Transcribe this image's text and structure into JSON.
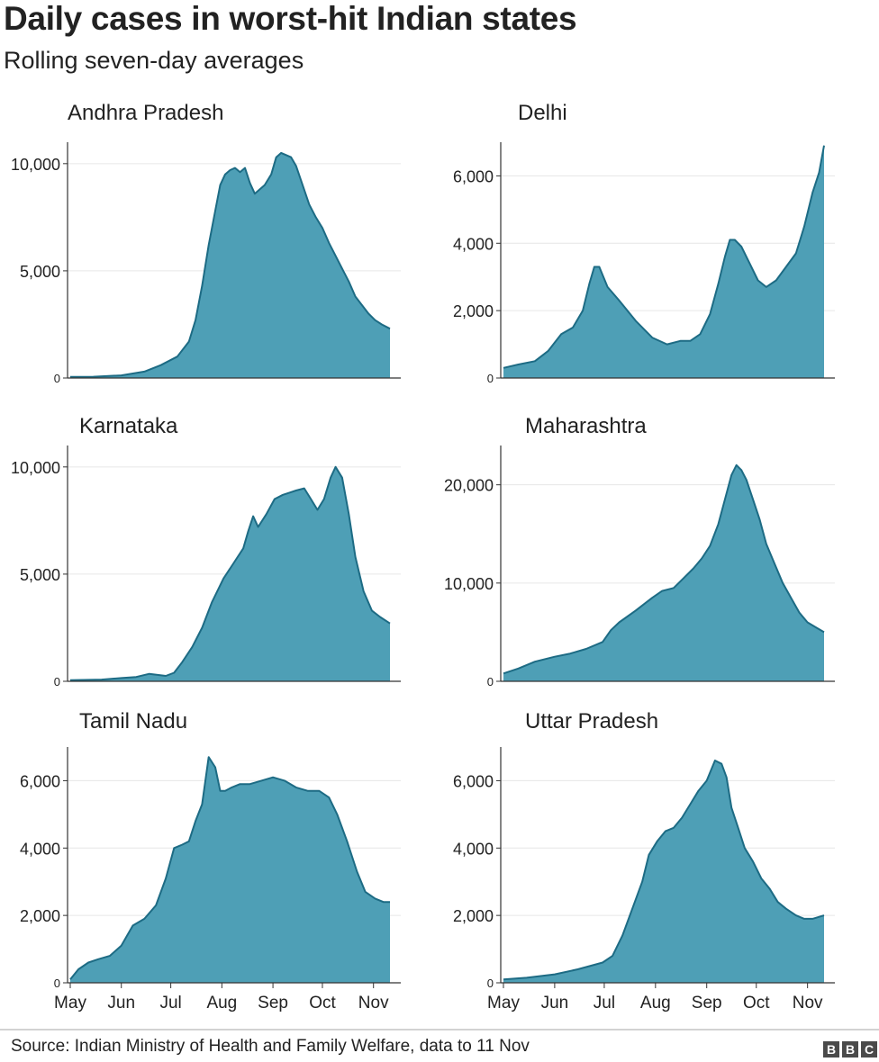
{
  "title": "Daily cases in worst-hit Indian states",
  "subtitle": "Rolling seven-day averages",
  "source": "Source: Indian Ministry of Health and Family Welfare, data to 11 Nov",
  "logo": {
    "text": "BBC",
    "letters": [
      "B",
      "B",
      "C"
    ]
  },
  "colors": {
    "area": "#4e9fb6",
    "line": "#1d6b84",
    "axis": "#333333",
    "grid": "#e6e6e6"
  },
  "chart_data": [
    {
      "type": "area",
      "title": "Andhra Pradesh",
      "ylim": [
        0,
        11000
      ],
      "yticks": [
        0,
        5000,
        10000
      ],
      "ytick_labels": [
        "0",
        "5,000",
        "10,000"
      ],
      "x_months": [],
      "grid": true,
      "x": [
        "2020-05-01",
        "2020-05-15",
        "2020-06-01",
        "2020-06-15",
        "2020-06-25",
        "2020-07-05",
        "2020-07-12",
        "2020-07-16",
        "2020-07-20",
        "2020-07-24",
        "2020-07-28",
        "2020-07-31",
        "2020-08-03",
        "2020-08-06",
        "2020-08-09",
        "2020-08-12",
        "2020-08-15",
        "2020-08-18",
        "2020-08-21",
        "2020-08-24",
        "2020-08-27",
        "2020-08-31",
        "2020-09-03",
        "2020-09-06",
        "2020-09-09",
        "2020-09-12",
        "2020-09-15",
        "2020-09-19",
        "2020-09-23",
        "2020-09-27",
        "2020-10-01",
        "2020-10-05",
        "2020-10-09",
        "2020-10-13",
        "2020-10-17",
        "2020-10-21",
        "2020-10-25",
        "2020-10-29",
        "2020-11-02",
        "2020-11-06",
        "2020-11-11"
      ],
      "values": [
        50,
        60,
        120,
        300,
        600,
        1000,
        1700,
        2700,
        4300,
        6200,
        7800,
        9000,
        9500,
        9700,
        9800,
        9600,
        9800,
        9100,
        8600,
        8800,
        9000,
        9500,
        10300,
        10500,
        10400,
        10300,
        9900,
        9000,
        8100,
        7500,
        7000,
        6300,
        5700,
        5100,
        4500,
        3800,
        3400,
        3000,
        2700,
        2500,
        2300
      ]
    },
    {
      "type": "area",
      "title": "Delhi",
      "ylim": [
        0,
        7000
      ],
      "yticks": [
        0,
        2000,
        4000,
        6000
      ],
      "ytick_labels": [
        "0",
        "2,000",
        "4,000",
        "6,000"
      ],
      "x_months": [],
      "grid": true,
      "x": [
        "2020-05-01",
        "2020-05-10",
        "2020-05-20",
        "2020-05-28",
        "2020-06-05",
        "2020-06-12",
        "2020-06-18",
        "2020-06-22",
        "2020-06-25",
        "2020-06-28",
        "2020-07-03",
        "2020-07-10",
        "2020-07-20",
        "2020-07-30",
        "2020-08-08",
        "2020-08-16",
        "2020-08-22",
        "2020-08-28",
        "2020-09-03",
        "2020-09-08",
        "2020-09-12",
        "2020-09-15",
        "2020-09-18",
        "2020-09-22",
        "2020-09-27",
        "2020-10-02",
        "2020-10-07",
        "2020-10-13",
        "2020-10-19",
        "2020-10-25",
        "2020-10-30",
        "2020-11-04",
        "2020-11-08",
        "2020-11-11"
      ],
      "values": [
        300,
        400,
        500,
        800,
        1300,
        1500,
        2000,
        2800,
        3300,
        3300,
        2700,
        2300,
        1700,
        1200,
        1000,
        1100,
        1100,
        1300,
        1900,
        2800,
        3600,
        4100,
        4100,
        3900,
        3400,
        2900,
        2700,
        2900,
        3300,
        3700,
        4500,
        5500,
        6100,
        6900
      ]
    },
    {
      "type": "area",
      "title": "Karnataka",
      "ylim": [
        0,
        11000
      ],
      "yticks": [
        0,
        5000,
        10000
      ],
      "ytick_labels": [
        "0",
        "5,000",
        "10,000"
      ],
      "x_months": [],
      "grid": true,
      "x": [
        "2020-05-01",
        "2020-05-20",
        "2020-06-01",
        "2020-06-10",
        "2020-06-18",
        "2020-06-28",
        "2020-07-03",
        "2020-07-08",
        "2020-07-14",
        "2020-07-20",
        "2020-07-26",
        "2020-08-02",
        "2020-08-08",
        "2020-08-14",
        "2020-08-17",
        "2020-08-20",
        "2020-08-23",
        "2020-08-28",
        "2020-09-02",
        "2020-09-07",
        "2020-09-11",
        "2020-09-15",
        "2020-09-20",
        "2020-09-24",
        "2020-09-28",
        "2020-10-02",
        "2020-10-06",
        "2020-10-09",
        "2020-10-13",
        "2020-10-17",
        "2020-10-21",
        "2020-10-26",
        "2020-10-31",
        "2020-11-05",
        "2020-11-11"
      ],
      "values": [
        50,
        80,
        150,
        200,
        350,
        250,
        400,
        900,
        1600,
        2500,
        3700,
        4800,
        5500,
        6200,
        7000,
        7700,
        7200,
        7800,
        8500,
        8700,
        8800,
        8900,
        9000,
        8500,
        8000,
        8500,
        9500,
        10000,
        9500,
        7800,
        5800,
        4200,
        3300,
        3000,
        2700
      ]
    },
    {
      "type": "area",
      "title": "Maharashtra",
      "ylim": [
        0,
        24000
      ],
      "yticks": [
        0,
        10000,
        20000
      ],
      "ytick_labels": [
        "0",
        "10,000",
        "20,000"
      ],
      "x_months": [],
      "grid": true,
      "x": [
        "2020-05-01",
        "2020-05-10",
        "2020-05-20",
        "2020-06-01",
        "2020-06-10",
        "2020-06-20",
        "2020-06-30",
        "2020-07-05",
        "2020-07-10",
        "2020-07-20",
        "2020-07-30",
        "2020-08-05",
        "2020-08-12",
        "2020-08-18",
        "2020-08-24",
        "2020-08-29",
        "2020-09-03",
        "2020-09-08",
        "2020-09-12",
        "2020-09-16",
        "2020-09-19",
        "2020-09-22",
        "2020-09-25",
        "2020-09-29",
        "2020-10-03",
        "2020-10-07",
        "2020-10-12",
        "2020-10-17",
        "2020-10-22",
        "2020-10-27",
        "2020-11-01",
        "2020-11-06",
        "2020-11-11"
      ],
      "values": [
        800,
        1300,
        2000,
        2500,
        2800,
        3300,
        4000,
        5200,
        6000,
        7200,
        8500,
        9200,
        9500,
        10500,
        11500,
        12500,
        13800,
        16000,
        18500,
        21000,
        22000,
        21500,
        20500,
        18500,
        16500,
        14000,
        12000,
        10000,
        8500,
        7000,
        6000,
        5500,
        5000
      ]
    },
    {
      "type": "area",
      "title": "Tamil Nadu",
      "ylim": [
        0,
        7000
      ],
      "yticks": [
        0,
        2000,
        4000,
        6000
      ],
      "ytick_labels": [
        "0",
        "2,000",
        "4,000",
        "6,000"
      ],
      "x_months": [
        "May",
        "Jun",
        "Jul",
        "Aug",
        "Sep",
        "Oct",
        "Nov"
      ],
      "grid": true,
      "x": [
        "2020-05-01",
        "2020-05-06",
        "2020-05-12",
        "2020-05-18",
        "2020-05-25",
        "2020-06-01",
        "2020-06-08",
        "2020-06-15",
        "2020-06-22",
        "2020-06-28",
        "2020-07-03",
        "2020-07-08",
        "2020-07-12",
        "2020-07-16",
        "2020-07-20",
        "2020-07-24",
        "2020-07-28",
        "2020-07-31",
        "2020-08-03",
        "2020-08-07",
        "2020-08-12",
        "2020-08-18",
        "2020-08-25",
        "2020-09-01",
        "2020-09-08",
        "2020-09-15",
        "2020-09-22",
        "2020-09-29",
        "2020-10-05",
        "2020-10-10",
        "2020-10-16",
        "2020-10-22",
        "2020-10-27",
        "2020-11-02",
        "2020-11-07",
        "2020-11-11"
      ],
      "values": [
        100,
        400,
        600,
        700,
        800,
        1100,
        1700,
        1900,
        2300,
        3100,
        4000,
        4100,
        4200,
        4800,
        5300,
        6700,
        6400,
        5700,
        5700,
        5800,
        5900,
        5900,
        6000,
        6100,
        6000,
        5800,
        5700,
        5700,
        5500,
        5000,
        4200,
        3300,
        2700,
        2500,
        2400,
        2400
      ]
    },
    {
      "type": "area",
      "title": "Uttar Pradesh",
      "ylim": [
        0,
        7000
      ],
      "yticks": [
        0,
        2000,
        4000,
        6000
      ],
      "ytick_labels": [
        "0",
        "2,000",
        "4,000",
        "6,000"
      ],
      "x_months": [
        "May",
        "Jun",
        "Jul",
        "Aug",
        "Sep",
        "Oct",
        "Nov"
      ],
      "grid": true,
      "x": [
        "2020-05-01",
        "2020-05-15",
        "2020-06-01",
        "2020-06-15",
        "2020-06-30",
        "2020-07-06",
        "2020-07-12",
        "2020-07-18",
        "2020-07-24",
        "2020-07-28",
        "2020-08-02",
        "2020-08-07",
        "2020-08-12",
        "2020-08-17",
        "2020-08-22",
        "2020-08-27",
        "2020-09-01",
        "2020-09-06",
        "2020-09-10",
        "2020-09-13",
        "2020-09-16",
        "2020-09-20",
        "2020-09-24",
        "2020-09-29",
        "2020-10-04",
        "2020-10-09",
        "2020-10-14",
        "2020-10-19",
        "2020-10-25",
        "2020-10-30",
        "2020-11-04",
        "2020-11-11"
      ],
      "values": [
        100,
        150,
        250,
        400,
        600,
        800,
        1400,
        2200,
        3000,
        3800,
        4200,
        4500,
        4600,
        4900,
        5300,
        5700,
        6000,
        6600,
        6500,
        6100,
        5200,
        4600,
        4000,
        3600,
        3100,
        2800,
        2400,
        2200,
        2000,
        1900,
        1900,
        2000
      ]
    }
  ]
}
